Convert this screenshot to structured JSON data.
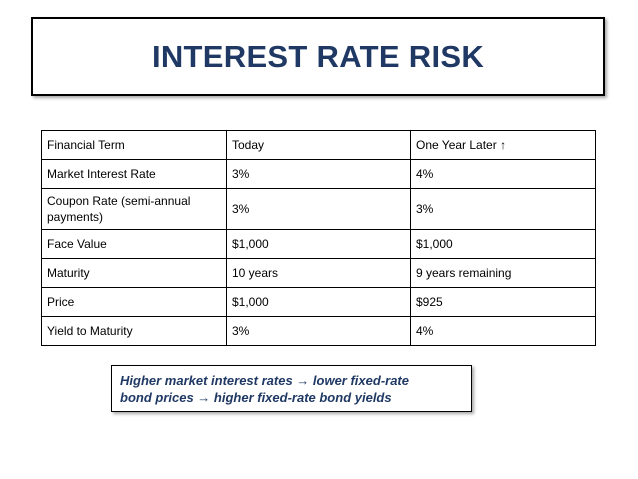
{
  "title": "INTEREST RATE RISK",
  "table": {
    "header": {
      "col1": "Financial Term",
      "col2": "Today",
      "col3": "One Year Later",
      "col3_icon": "↑"
    },
    "rows": [
      [
        "Market Interest Rate",
        "3%",
        "4%"
      ],
      [
        "Coupon Rate (semi-annual payments)",
        "3%",
        "3%"
      ],
      [
        "Face Value",
        "$1,000",
        "$1,000"
      ],
      [
        "Maturity",
        "10 years",
        "9 years remaining"
      ],
      [
        "Price",
        "$1,000",
        "$925"
      ],
      [
        "Yield to Maturity",
        "3%",
        "4%"
      ]
    ]
  },
  "note": {
    "line1": "Higher market interest rates → lower fixed-rate",
    "line2": "bond prices → higher fixed-rate bond yields"
  },
  "colors": {
    "title": "#1f3864",
    "note_text": "#1f3864",
    "border": "#000000",
    "background": "#ffffff"
  }
}
